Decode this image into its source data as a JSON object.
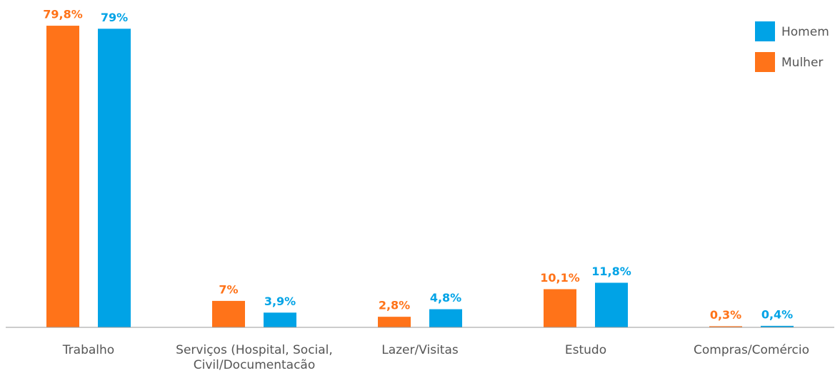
{
  "chart_data": {
    "type": "bar",
    "categories": [
      "Trabalho",
      "Serviços (Hospital, Social, Civil/Documentacão",
      "Lazer/Visitas",
      "Estudo",
      "Compras/Comércio"
    ],
    "series": [
      {
        "name": "Mulher",
        "color": "#ff7319",
        "values": [
          79.8,
          7,
          2.8,
          10.1,
          0.3
        ],
        "value_labels": [
          "79,8%",
          "7%",
          "2,8%",
          "10,1%",
          "0,3%"
        ]
      },
      {
        "name": "Homem",
        "color": "#00a3e6",
        "values": [
          79,
          3.9,
          4.8,
          11.8,
          0.4
        ],
        "value_labels": [
          "79%",
          "3,9%",
          "4,8%",
          "11,8%",
          "0,4%"
        ]
      }
    ],
    "ylim": [
      0,
      80
    ],
    "legend": "top-right"
  }
}
